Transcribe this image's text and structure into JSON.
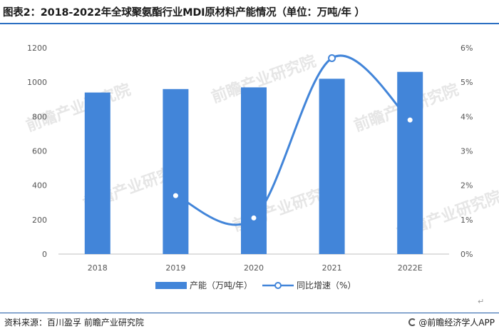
{
  "title": "图表2：2018-2022年全球聚氨酯行业MDI原材料产能情况（单位：万吨/年 ）",
  "source": "资料来源：百川盈孚 前瞻产业研究院",
  "brand": "@前瞻经济学人APP",
  "watermark": "前瞻产业研究院",
  "return_mark": "↵",
  "chart_data": {
    "type": "bar",
    "categories": [
      "2018",
      "2019",
      "2020",
      "2021",
      "2022E"
    ],
    "series": [
      {
        "name": "产能（万吨/年）",
        "type": "bar",
        "axis": "left",
        "values": [
          940,
          960,
          970,
          1020,
          1060
        ],
        "color": "#4285d9"
      },
      {
        "name": "同比增速（%）",
        "type": "line",
        "axis": "right",
        "values": [
          null,
          1.7,
          1.05,
          5.7,
          3.9
        ],
        "color": "#4285d9"
      }
    ],
    "y_left": {
      "ylim": [
        0,
        1200
      ],
      "ticks": [
        "0",
        "200",
        "400",
        "600",
        "800",
        "1000",
        "1200"
      ]
    },
    "y_right": {
      "ylim": [
        0,
        6
      ],
      "ticks": [
        "0%",
        "1%",
        "2%",
        "3%",
        "4%",
        "5%",
        "6%"
      ]
    },
    "grid": false,
    "legend_position": "bottom"
  }
}
